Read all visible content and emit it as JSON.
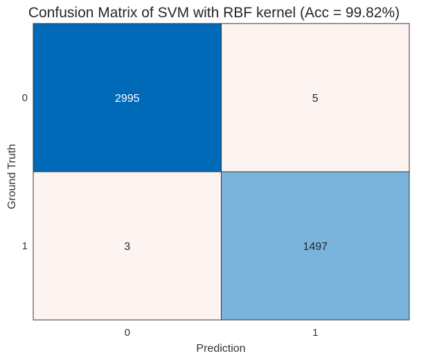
{
  "chart_data": {
    "type": "heatmap",
    "title": "Confusion Matrix of SVM with RBF kernel (Acc = 99.82%)",
    "xlabel": "Prediction",
    "ylabel": "Ground Truth",
    "x_categories": [
      "0",
      "1"
    ],
    "y_categories": [
      "0",
      "1"
    ],
    "values": [
      [
        2995,
        5
      ],
      [
        3,
        1497
      ]
    ],
    "cell_labels": [
      [
        "2995",
        "5"
      ],
      [
        "3",
        "1497"
      ]
    ],
    "colormap": {
      "low": "#fdf4f1",
      "mid": "#7ab4dc",
      "high": "#006ab8",
      "border": "#333333"
    }
  }
}
